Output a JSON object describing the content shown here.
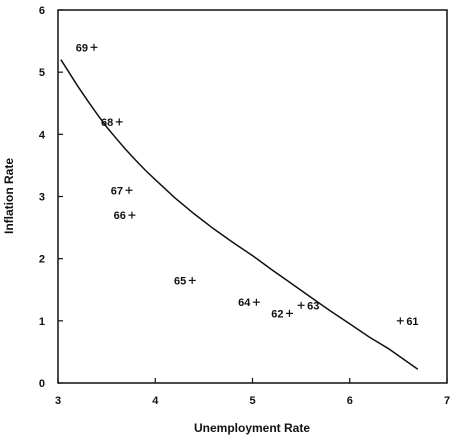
{
  "chart_data": {
    "type": "scatter",
    "title": "",
    "xlabel": "Unemployment Rate",
    "ylabel": "Inflation Rate",
    "xlim": [
      3,
      7
    ],
    "ylim": [
      0,
      6
    ],
    "x_ticks": [
      3,
      4,
      5,
      6,
      7
    ],
    "y_ticks": [
      0,
      1,
      2,
      3,
      4,
      5,
      6
    ],
    "grid": false,
    "legend": "none",
    "points": [
      {
        "label": "61",
        "x": 6.52,
        "y": 1.0,
        "label_side": "right"
      },
      {
        "label": "62",
        "x": 5.38,
        "y": 1.12,
        "label_side": "left"
      },
      {
        "label": "63",
        "x": 5.5,
        "y": 1.25,
        "label_side": "right"
      },
      {
        "label": "64",
        "x": 5.04,
        "y": 1.3,
        "label_side": "left"
      },
      {
        "label": "65",
        "x": 4.38,
        "y": 1.65,
        "label_side": "left"
      },
      {
        "label": "66",
        "x": 3.76,
        "y": 2.7,
        "label_side": "left"
      },
      {
        "label": "67",
        "x": 3.73,
        "y": 3.1,
        "label_side": "left"
      },
      {
        "label": "68",
        "x": 3.63,
        "y": 4.2,
        "label_side": "left"
      },
      {
        "label": "69",
        "x": 3.37,
        "y": 5.4,
        "label_side": "left"
      }
    ],
    "curve": {
      "x": [
        3.03,
        3.1,
        3.2,
        3.3,
        3.4,
        3.5,
        3.6,
        3.7,
        3.8,
        3.9,
        4.0,
        4.2,
        4.4,
        4.6,
        4.8,
        5.0,
        5.2,
        5.4,
        5.6,
        5.8,
        6.0,
        6.2,
        6.4,
        6.7
      ],
      "y": [
        5.2,
        5.03,
        4.78,
        4.55,
        4.33,
        4.12,
        3.93,
        3.75,
        3.58,
        3.42,
        3.27,
        2.98,
        2.72,
        2.48,
        2.26,
        2.05,
        1.82,
        1.6,
        1.38,
        1.16,
        0.95,
        0.74,
        0.55,
        0.22
      ]
    },
    "colors": {
      "ink": "#111111",
      "background": "#ffffff"
    }
  }
}
